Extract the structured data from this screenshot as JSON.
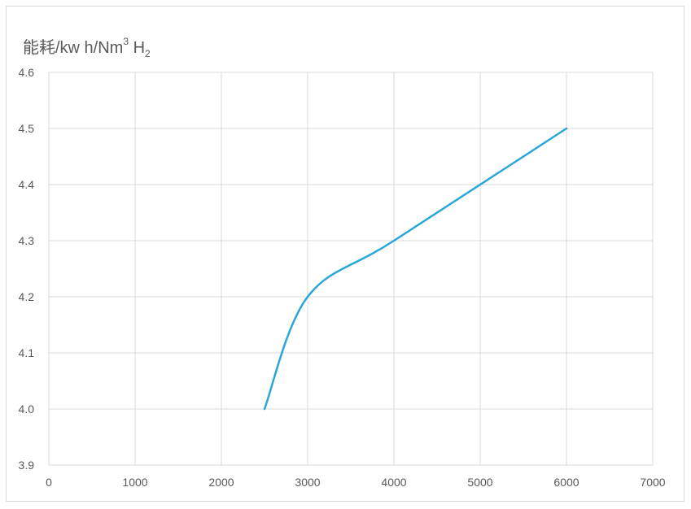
{
  "chart_data": {
    "type": "line",
    "title": "",
    "ylabel": {
      "main": "能耗/kw h/Nm",
      "sup": "3",
      "space": " H",
      "sub": "2"
    },
    "xlabel": "",
    "xlim": [
      0,
      7000
    ],
    "ylim": [
      3.9,
      4.6
    ],
    "xticks": [
      0,
      1000,
      2000,
      3000,
      4000,
      5000,
      6000,
      7000
    ],
    "yticks": [
      "3.9",
      "4.0",
      "4.1",
      "4.2",
      "4.3",
      "4.4",
      "4.5",
      "4.6"
    ],
    "grid": true,
    "legend": "none",
    "series": [
      {
        "color": "#2aa6d8",
        "smooth": true,
        "x": [
          2500,
          3000,
          4000,
          6000
        ],
        "y": [
          4.0,
          4.2,
          4.3,
          4.5
        ]
      }
    ]
  }
}
